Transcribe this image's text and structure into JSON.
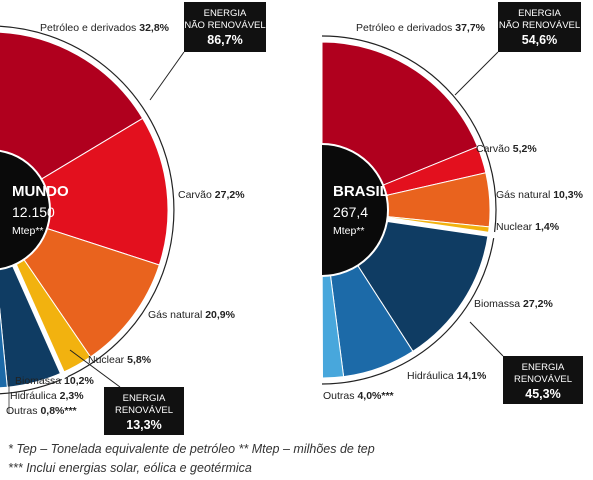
{
  "chart_data": [
    {
      "type": "pie",
      "center_title": "MUNDO",
      "center_value": "12.150",
      "center_unit": "Mtep**",
      "slices": [
        {
          "label": "Petróleo e derivados",
          "value_text": "32,8%",
          "value": 32.8,
          "color": "#b0001e"
        },
        {
          "label": "Carvão",
          "value_text": "27,2%",
          "value": 27.2,
          "color": "#e3101e"
        },
        {
          "label": "Gás natural",
          "value_text": "20,9%",
          "value": 20.9,
          "color": "#e9631e"
        },
        {
          "label": "Nuclear",
          "value_text": "5,8%",
          "value": 5.8,
          "color": "#f2b20f"
        },
        {
          "label": "Biomassa",
          "value_text": "10,2%",
          "value": 10.2,
          "color": "#0f3c63"
        },
        {
          "label": "Hidráulica",
          "value_text": "2,3%",
          "value": 2.3,
          "color": "#1c6aa8"
        },
        {
          "label": "Outras",
          "value_text": "0,8%***",
          "value": 0.8,
          "color": "#48a7dc"
        }
      ],
      "groups": [
        {
          "title": "ENERGIA",
          "subtitle": "NÃO RENOVÁVEL",
          "value": "86,7%",
          "percent": 86.7
        },
        {
          "title": "ENERGIA",
          "subtitle": "RENOVÁVEL",
          "value": "13,3%",
          "percent": 13.3
        }
      ]
    },
    {
      "type": "pie",
      "center_title": "BRASIL",
      "center_value": "267,4",
      "center_unit": "Mtep**",
      "slices": [
        {
          "label": "Petróleo e derivados",
          "value_text": "37,7%",
          "value": 37.7,
          "color": "#b0001e"
        },
        {
          "label": "Carvão",
          "value_text": "5,2%",
          "value": 5.2,
          "color": "#e3101e"
        },
        {
          "label": "Gás natural",
          "value_text": "10,3%",
          "value": 10.3,
          "color": "#e9631e"
        },
        {
          "label": "Nuclear",
          "value_text": "1,4%",
          "value": 1.4,
          "color": "#f2b20f"
        },
        {
          "label": "Biomassa",
          "value_text": "27,2%",
          "value": 27.2,
          "color": "#0f3c63"
        },
        {
          "label": "Hidráulica",
          "value_text": "14,1%",
          "value": 14.1,
          "color": "#1c6aa8"
        },
        {
          "label": "Outras",
          "value_text": "4,0%***",
          "value": 4.0,
          "color": "#48a7dc"
        }
      ],
      "groups": [
        {
          "title": "ENERGIA",
          "subtitle": "NÃO RENOVÁVEL",
          "value": "54,6%",
          "percent": 54.6
        },
        {
          "title": "ENERGIA",
          "subtitle": "RENOVÁVEL",
          "value": "45,3%",
          "percent": 45.3
        }
      ]
    }
  ],
  "footnotes": {
    "line1": "* Tep – Tonelada equivalente de petróleo   ** Mtep – milhões de tep",
    "line2": "*** Inclui energias solar, eólica e geotérmica"
  }
}
